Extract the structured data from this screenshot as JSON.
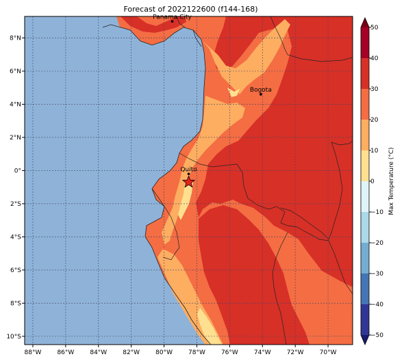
{
  "title": "Forecast of 2022122600 (f144-168)",
  "colors": {
    "ocean": "#8fb3d8",
    "bin_20_30": "#f46d43",
    "bin_30_40": "#d73027",
    "bin_10_20": "#fdae61",
    "bin_0_10": "#fee090",
    "border": "#222222",
    "grid": "#444466",
    "star": "#e8221b"
  },
  "map": {
    "lon_range": [
      -88.5,
      -68.5
    ],
    "lat_range": [
      -10.5,
      9.3
    ],
    "lon_ticks": [
      {
        "value": -88,
        "label": "88°W"
      },
      {
        "value": -86,
        "label": "86°W"
      },
      {
        "value": -84,
        "label": "84°W"
      },
      {
        "value": -82,
        "label": "82°W"
      },
      {
        "value": -80,
        "label": "80°W"
      },
      {
        "value": -78,
        "label": "78°W"
      },
      {
        "value": -76,
        "label": "76°W"
      },
      {
        "value": -74,
        "label": "74°W"
      },
      {
        "value": -72,
        "label": "72°W"
      },
      {
        "value": -70,
        "label": "70°W"
      }
    ],
    "lat_ticks": [
      {
        "value": 8,
        "label": "8°N"
      },
      {
        "value": 6,
        "label": "6°N"
      },
      {
        "value": 4,
        "label": "4°N"
      },
      {
        "value": 2,
        "label": "2°N"
      },
      {
        "value": 0,
        "label": "0°"
      },
      {
        "value": -2,
        "label": "2°S"
      },
      {
        "value": -4,
        "label": "4°S"
      },
      {
        "value": -6,
        "label": "6°S"
      },
      {
        "value": -8,
        "label": "8°S"
      },
      {
        "value": -10,
        "label": "10°S"
      }
    ],
    "cities": [
      {
        "name": "Panama City",
        "lon": -79.5,
        "lat": 9.0
      },
      {
        "name": "Bogota",
        "lon": -74.1,
        "lat": 4.6
      },
      {
        "name": "Quito",
        "lon": -78.5,
        "lat": -0.2
      }
    ],
    "star": {
      "lon": -78.5,
      "lat": -0.7
    }
  },
  "colorbar": {
    "label": "Max Temperature (°C)",
    "bins": [
      {
        "from": -50,
        "to": -40,
        "color": "#313695"
      },
      {
        "from": -40,
        "to": -30,
        "color": "#4575b4"
      },
      {
        "from": -30,
        "to": -20,
        "color": "#74add1"
      },
      {
        "from": -20,
        "to": -10,
        "color": "#abd9e9"
      },
      {
        "from": -10,
        "to": 0,
        "color": "#e0f3f8"
      },
      {
        "from": 0,
        "to": 10,
        "color": "#fee090"
      },
      {
        "from": 10,
        "to": 20,
        "color": "#fdae61"
      },
      {
        "from": 20,
        "to": 30,
        "color": "#f46d43"
      },
      {
        "from": 30,
        "to": 40,
        "color": "#d73027"
      },
      {
        "from": 40,
        "to": 50,
        "color": "#a50026"
      }
    ],
    "under_color": "#1a1a6e",
    "over_color": "#7a0018",
    "ticks": [
      50,
      40,
      30,
      20,
      10,
      0,
      -10,
      -20,
      -30,
      -40,
      -50
    ]
  }
}
